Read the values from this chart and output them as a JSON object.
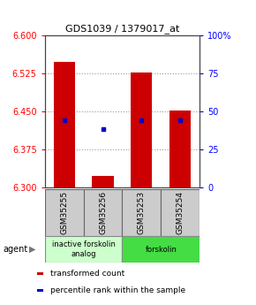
{
  "title": "GDS1039 / 1379017_at",
  "samples": [
    "GSM35255",
    "GSM35256",
    "GSM35253",
    "GSM35254"
  ],
  "bar_bottoms": [
    6.3,
    6.3,
    6.3,
    6.3
  ],
  "bar_tops": [
    6.548,
    6.323,
    6.527,
    6.452
  ],
  "percentile_values": [
    6.432,
    6.415,
    6.432,
    6.432
  ],
  "ylim_left": [
    6.3,
    6.6
  ],
  "ylim_right": [
    0,
    100
  ],
  "yticks_left": [
    6.3,
    6.375,
    6.45,
    6.525,
    6.6
  ],
  "yticks_right": [
    0,
    25,
    50,
    75,
    100
  ],
  "ytick_labels_right": [
    "0",
    "25",
    "50",
    "75",
    "100%"
  ],
  "bar_color": "#cc0000",
  "percentile_color": "#0000cc",
  "groups": [
    {
      "label": "inactive forskolin\nanalog",
      "samples": [
        0,
        1
      ],
      "color": "#ccffcc",
      "border": "#888888"
    },
    {
      "label": "forskolin",
      "samples": [
        2,
        3
      ],
      "color": "#44dd44",
      "border": "#888888"
    }
  ],
  "agent_label": "agent",
  "legend_items": [
    {
      "color": "#cc0000",
      "label": "transformed count"
    },
    {
      "color": "#0000cc",
      "label": "percentile rank within the sample"
    }
  ],
  "bar_width": 0.55,
  "grid_color": "#999999",
  "sample_box_color": "#cccccc",
  "sample_box_border": "#666666",
  "title_fontsize": 8,
  "tick_fontsize": 7,
  "legend_fontsize": 6.5
}
